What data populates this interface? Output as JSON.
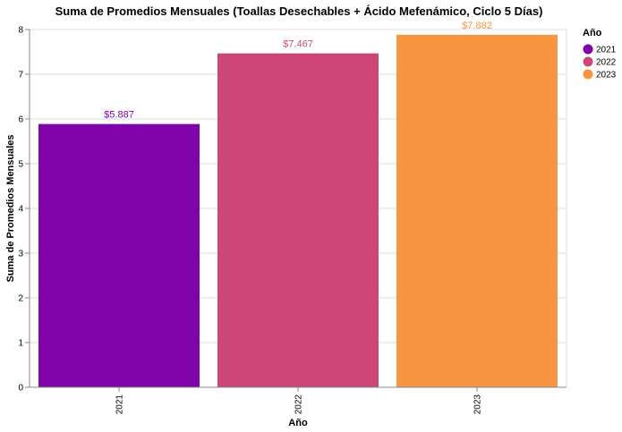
{
  "chart_data": {
    "type": "bar",
    "title": "Suma de Promedios Mensuales (Toallas Desechables + Ácido Mefenámico, Ciclo 5 Días)",
    "xlabel": "Año",
    "ylabel": "Suma de Promedios Mensuales",
    "categories": [
      "2021",
      "2022",
      "2023"
    ],
    "values": [
      5.887,
      7.467,
      7.882
    ],
    "data_labels": [
      "$5.887",
      "$7.467",
      "$7.882"
    ],
    "colors": [
      "#7e03a8",
      "#cc4778",
      "#f89540"
    ],
    "ylim": [
      0,
      8
    ],
    "yticks": [
      "0",
      "1",
      "2",
      "3",
      "4",
      "5",
      "6",
      "7",
      "8"
    ],
    "grid": true,
    "legend": {
      "title": "Año",
      "placement": "top-right",
      "entries": [
        "2021",
        "2022",
        "2023"
      ]
    }
  }
}
